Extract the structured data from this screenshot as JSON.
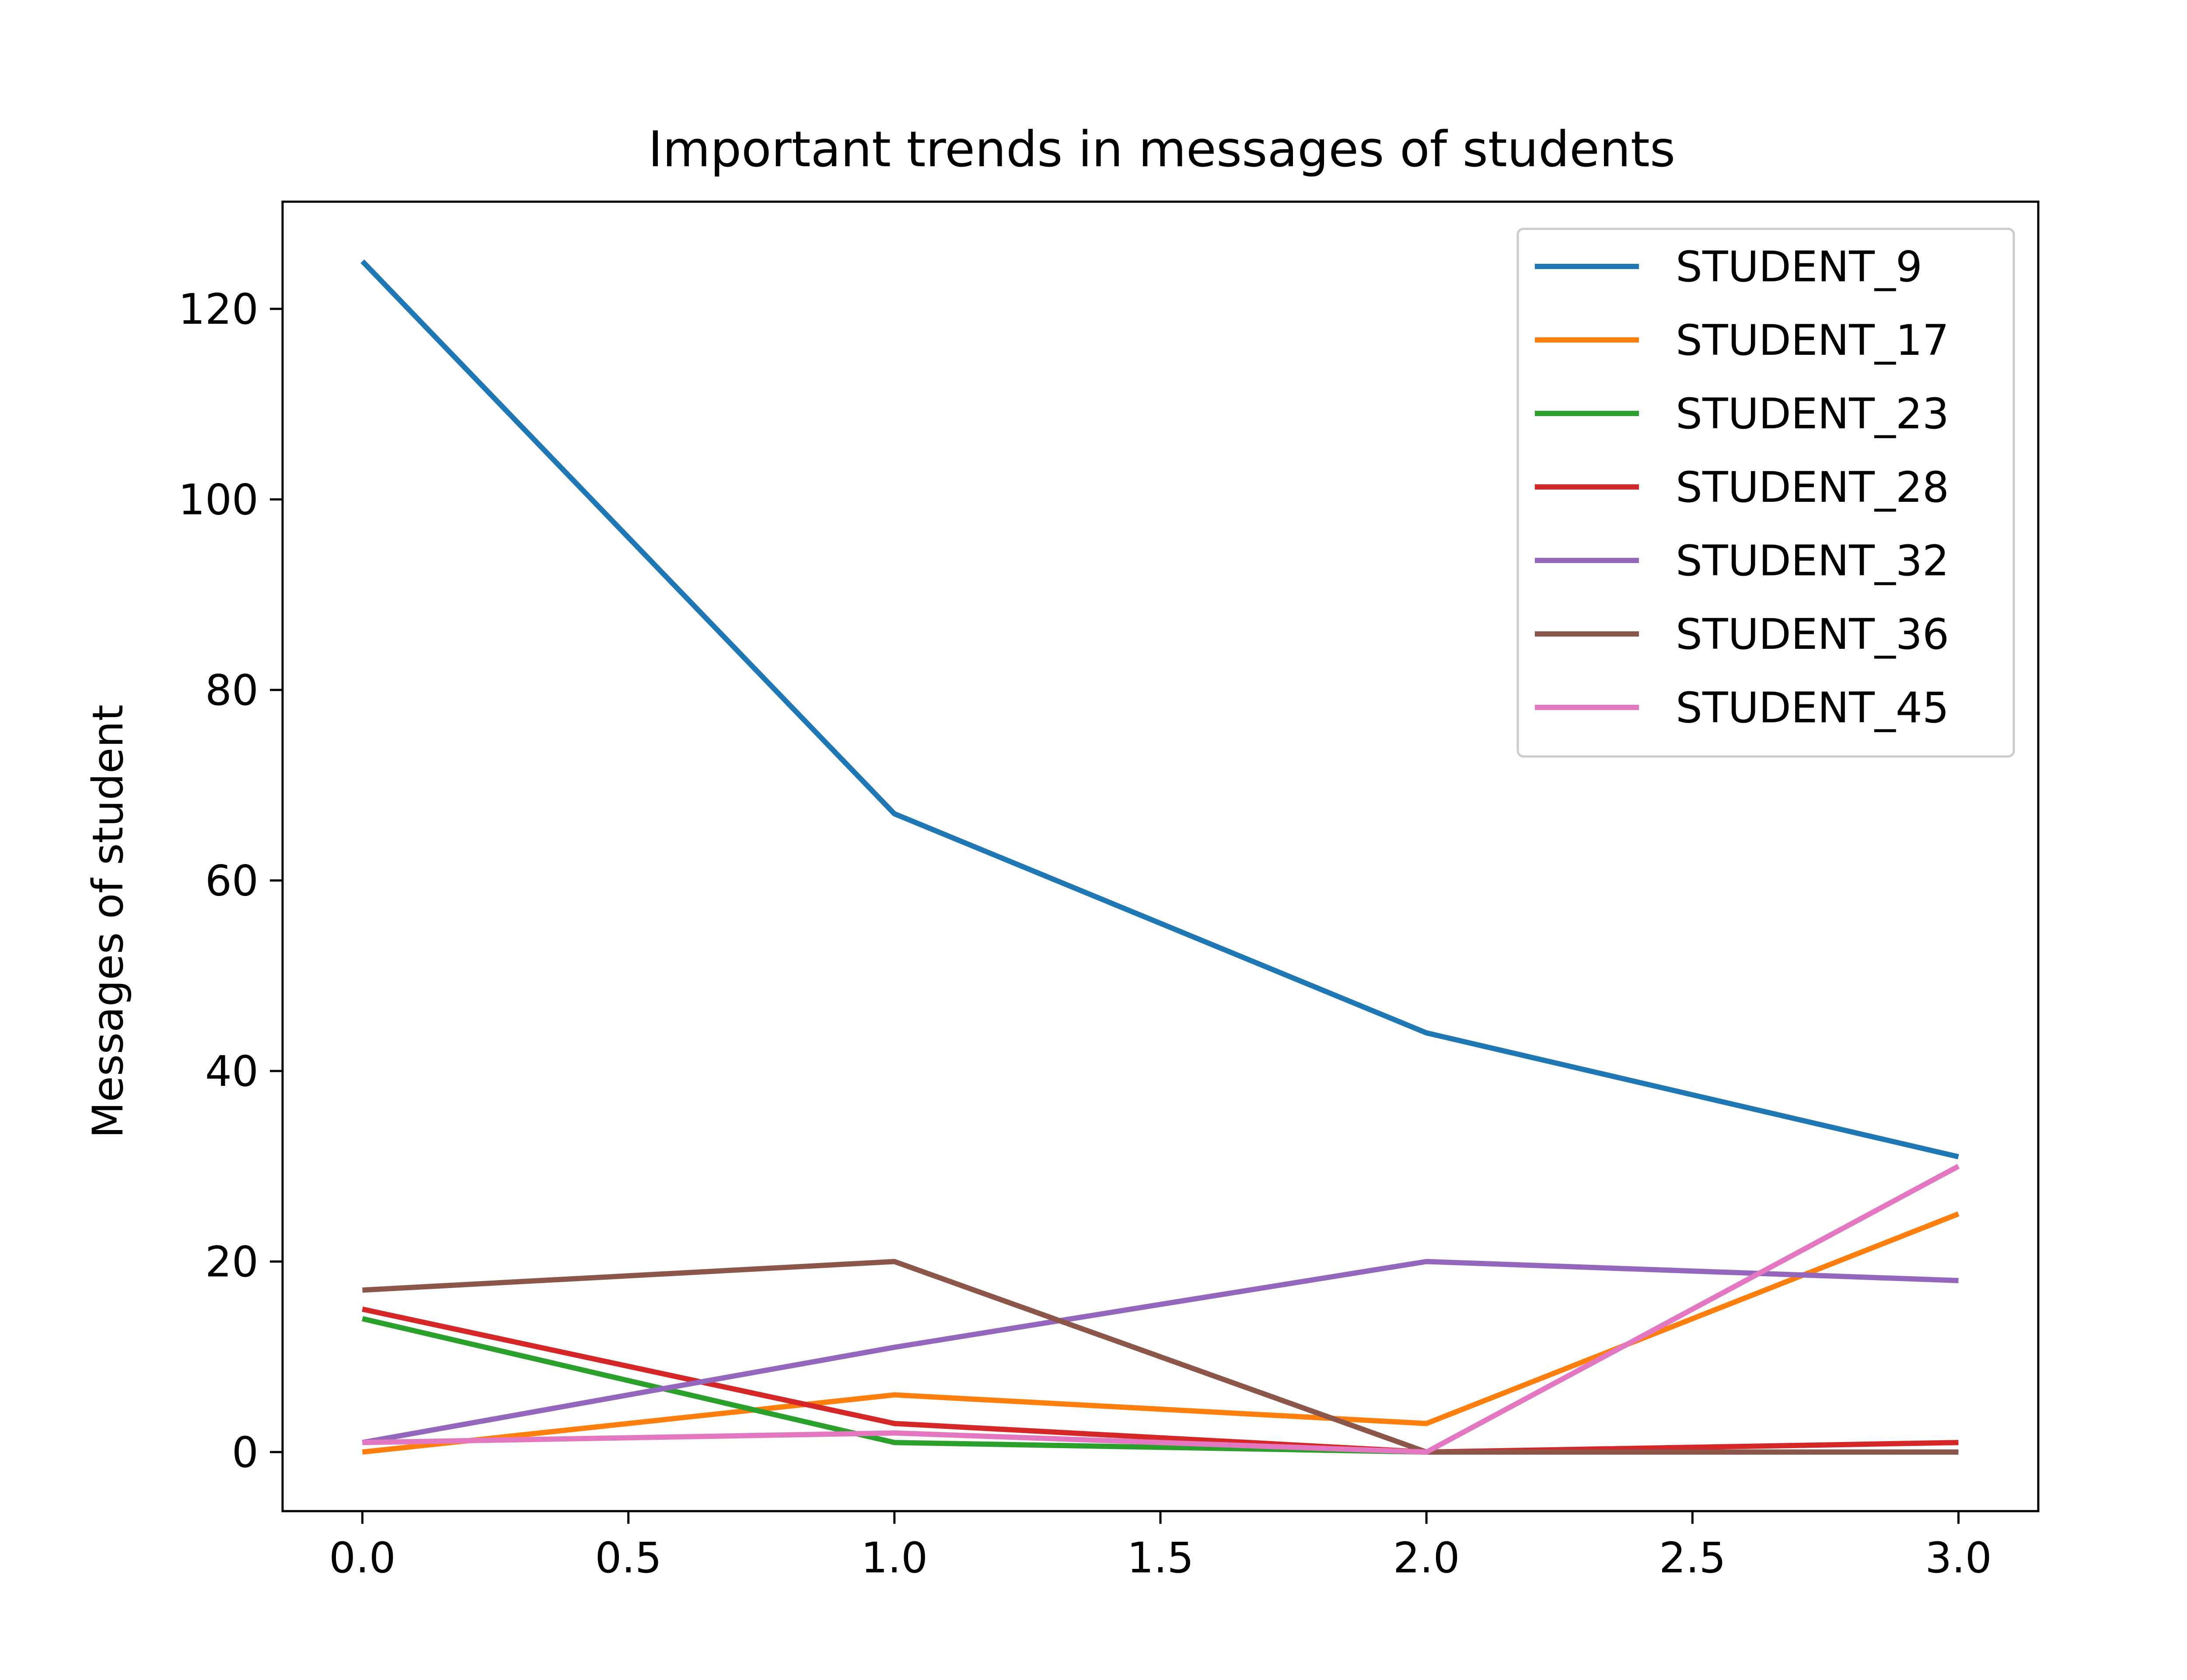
{
  "chart_data": {
    "type": "line",
    "title": "Important trends in messages of students",
    "xlabel": "",
    "ylabel": "Messages of student",
    "x": [
      0,
      1,
      2,
      3
    ],
    "xlim": [
      -0.15,
      3.15
    ],
    "ylim": [
      -6.2,
      131.25
    ],
    "xticks": [
      0.0,
      0.5,
      1.0,
      1.5,
      2.0,
      2.5,
      3.0
    ],
    "xtick_labels": [
      "0.0",
      "0.5",
      "1.0",
      "1.5",
      "2.0",
      "2.5",
      "3.0"
    ],
    "yticks": [
      0,
      20,
      40,
      60,
      80,
      100,
      120
    ],
    "ytick_labels": [
      "0",
      "20",
      "40",
      "60",
      "80",
      "100",
      "120"
    ],
    "grid": false,
    "legend_position": "top-right",
    "series": [
      {
        "name": "STUDENT_9",
        "color": "#1f77b4",
        "values": [
          125,
          67,
          44,
          31
        ]
      },
      {
        "name": "STUDENT_17",
        "color": "#ff7f0e",
        "values": [
          0,
          6,
          3,
          25
        ]
      },
      {
        "name": "STUDENT_23",
        "color": "#2ca02c",
        "values": [
          14,
          1,
          0,
          0
        ]
      },
      {
        "name": "STUDENT_28",
        "color": "#d62728",
        "values": [
          15,
          3,
          0,
          1
        ]
      },
      {
        "name": "STUDENT_32",
        "color": "#9467bd",
        "values": [
          1,
          11,
          20,
          18
        ]
      },
      {
        "name": "STUDENT_36",
        "color": "#8c564b",
        "values": [
          17,
          20,
          0,
          0
        ]
      },
      {
        "name": "STUDENT_45",
        "color": "#e377c2",
        "values": [
          1,
          2,
          0,
          30
        ]
      }
    ]
  }
}
